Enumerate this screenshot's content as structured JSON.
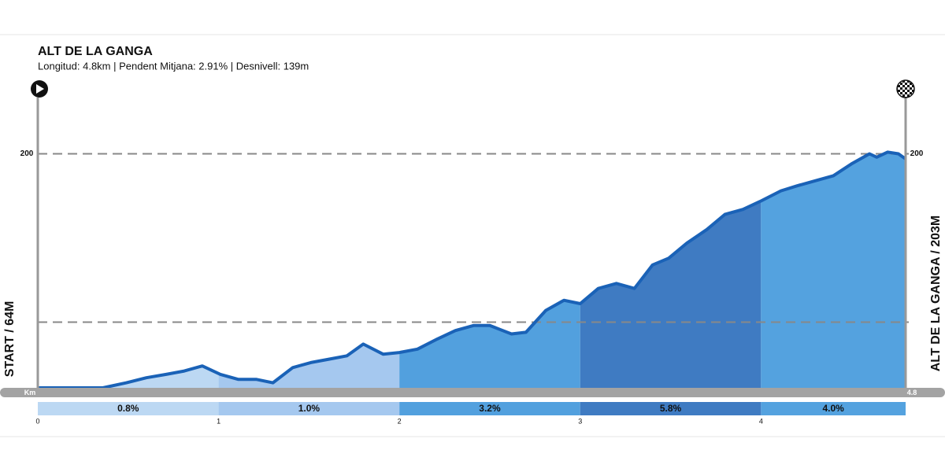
{
  "chart_data": {
    "type": "area",
    "title": "ALT DE LA GANGA",
    "subtitle": "Longitud: 4.8km | Pendent Mitjana: 2.91% | Desnivell: 139m",
    "start_label": "START / 64M",
    "finish_label": "ALT DE LA GANGA / 203M",
    "x_label": "Km",
    "x": [
      0,
      0.36,
      0.49,
      0.6,
      0.71,
      0.81,
      0.91,
      1.01,
      1.11,
      1.21,
      1.3,
      1.41,
      1.51,
      1.61,
      1.71,
      1.8,
      1.91,
      2.0,
      2.1,
      2.21,
      2.31,
      2.41,
      2.5,
      2.62,
      2.7,
      2.81,
      2.91,
      3.0,
      3.1,
      3.2,
      3.3,
      3.4,
      3.49,
      3.59,
      3.7,
      3.8,
      3.9,
      4.0,
      4.11,
      4.2,
      4.3,
      4.4,
      4.5,
      4.6,
      4.64,
      4.7,
      4.76,
      4.8
    ],
    "values": [
      61,
      61,
      64,
      67,
      69,
      71,
      74,
      69,
      66,
      66,
      64,
      73,
      76,
      78,
      80,
      87,
      81,
      82,
      84,
      90,
      95,
      98,
      98,
      93,
      94,
      107,
      113,
      111,
      120,
      123,
      120,
      134,
      138,
      147,
      155,
      164,
      167,
      172,
      178,
      181,
      184,
      187,
      194,
      200,
      198,
      201,
      200,
      197
    ],
    "color": "#1a62b7",
    "xlim": [
      0,
      4.8
    ],
    "xticks": [
      0,
      1,
      2,
      3,
      4
    ],
    "ylim": [
      61,
      231
    ],
    "yticks": [
      200
    ],
    "grid_lines": [
      100,
      200
    ],
    "segments": {
      "values": [
        0.8,
        1.0,
        3.2,
        5.8,
        4.0
      ],
      "value_labels": [
        "0.8%",
        "1.0%",
        "3.2%",
        "5.8%",
        "4.0%"
      ],
      "colors": [
        "#bcd8f3",
        "#a5c8ef",
        "#52a0de",
        "#3f7bc2",
        "#54a2df"
      ]
    }
  }
}
